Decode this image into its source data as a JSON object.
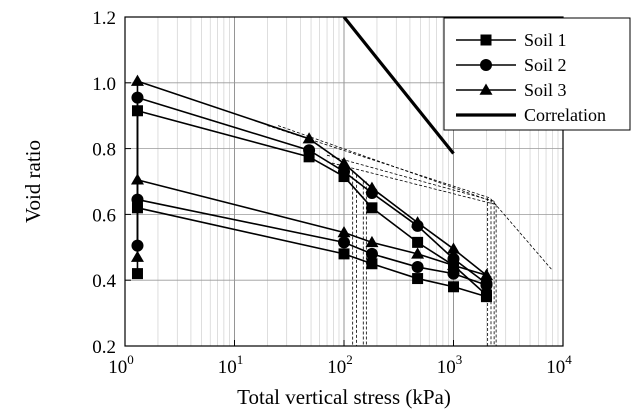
{
  "chart_data": {
    "type": "line",
    "xscale": "log",
    "xlim": [
      1,
      10000
    ],
    "ylim": [
      0.2,
      1.2
    ],
    "xlabel": "Total vertical stress (kPa)",
    "ylabel": "Void ratio",
    "xticks": [
      {
        "value": 1,
        "base": "10",
        "exp": "0"
      },
      {
        "value": 10,
        "base": "10",
        "exp": "1"
      },
      {
        "value": 100,
        "base": "10",
        "exp": "2"
      },
      {
        "value": 1000,
        "base": "10",
        "exp": "3"
      },
      {
        "value": 10000,
        "base": "10",
        "exp": "4"
      }
    ],
    "yticks": [
      {
        "value": 0.2,
        "label": "0.2"
      },
      {
        "value": 0.4,
        "label": "0.4"
      },
      {
        "value": 0.6,
        "label": "0.6"
      },
      {
        "value": 0.8,
        "label": "0.8"
      },
      {
        "value": 1.0,
        "label": "1.0"
      },
      {
        "value": 1.2,
        "label": "1.2"
      }
    ],
    "grid": true,
    "legend": "top-right",
    "series": [
      {
        "name": "Soil 1",
        "marker": "square",
        "segments": [
          [
            [
              1.3,
              0.42
            ],
            [
              1.3,
              0.915
            ]
          ],
          [
            [
              1.3,
              0.915
            ],
            [
              48,
              0.775
            ],
            [
              100,
              0.715
            ],
            [
              180,
              0.62
            ],
            [
              470,
              0.515
            ],
            [
              1000,
              0.445
            ],
            [
              2000,
              0.355
            ]
          ],
          [
            [
              1.3,
              0.62
            ],
            [
              100,
              0.48
            ],
            [
              180,
              0.45
            ],
            [
              470,
              0.405
            ],
            [
              1000,
              0.38
            ],
            [
              2000,
              0.35
            ]
          ]
        ]
      },
      {
        "name": "Soil 2",
        "marker": "circle",
        "segments": [
          [
            [
              1.3,
              0.505
            ],
            [
              1.3,
              0.955
            ]
          ],
          [
            [
              1.3,
              0.955
            ],
            [
              48,
              0.795
            ],
            [
              100,
              0.73
            ],
            [
              180,
              0.665
            ],
            [
              470,
              0.565
            ],
            [
              1000,
              0.465
            ],
            [
              2000,
              0.39
            ]
          ],
          [
            [
              1.3,
              0.645
            ],
            [
              100,
              0.515
            ],
            [
              180,
              0.48
            ],
            [
              470,
              0.44
            ],
            [
              1000,
              0.42
            ],
            [
              2000,
              0.385
            ]
          ]
        ]
      },
      {
        "name": "Soil 3",
        "marker": "triangle",
        "segments": [
          [
            [
              1.3,
              0.47
            ],
            [
              1.3,
              1.005
            ]
          ],
          [
            [
              1.3,
              1.005
            ],
            [
              48,
              0.83
            ],
            [
              100,
              0.755
            ],
            [
              180,
              0.68
            ],
            [
              470,
              0.575
            ],
            [
              1000,
              0.495
            ],
            [
              2000,
              0.415
            ]
          ],
          [
            [
              1.3,
              0.705
            ],
            [
              100,
              0.545
            ],
            [
              180,
              0.515
            ],
            [
              470,
              0.48
            ],
            [
              1000,
              0.445
            ],
            [
              2000,
              0.415
            ]
          ]
        ]
      },
      {
        "name": "Correlation",
        "marker": "none",
        "segments": [
          [
            [
              100,
              1.2
            ],
            [
              1000,
              0.785
            ]
          ]
        ]
      }
    ],
    "construction_lines": [
      [
        [
          20,
          0.87
        ],
        [
          2150,
          0.65
        ],
        [
          8000,
          0.43
        ]
      ],
      [
        [
          25,
          0.87
        ],
        [
          2250,
          0.64
        ]
      ],
      [
        [
          70,
          0.78
        ],
        [
          2350,
          0.64
        ]
      ],
      [
        [
          70,
          0.76
        ],
        [
          2450,
          0.63
        ]
      ],
      [
        [
          120,
          0.73
        ],
        [
          120,
          0.2
        ]
      ],
      [
        [
          130,
          0.72
        ],
        [
          130,
          0.2
        ]
      ],
      [
        [
          150,
          0.7
        ],
        [
          150,
          0.2
        ]
      ],
      [
        [
          160,
          0.7
        ],
        [
          160,
          0.2
        ]
      ],
      [
        [
          2050,
          0.65
        ],
        [
          2050,
          0.2
        ]
      ],
      [
        [
          2200,
          0.64
        ],
        [
          2200,
          0.2
        ]
      ],
      [
        [
          2350,
          0.64
        ],
        [
          2350,
          0.2
        ]
      ],
      [
        [
          2450,
          0.63
        ],
        [
          2450,
          0.2
        ]
      ]
    ]
  }
}
